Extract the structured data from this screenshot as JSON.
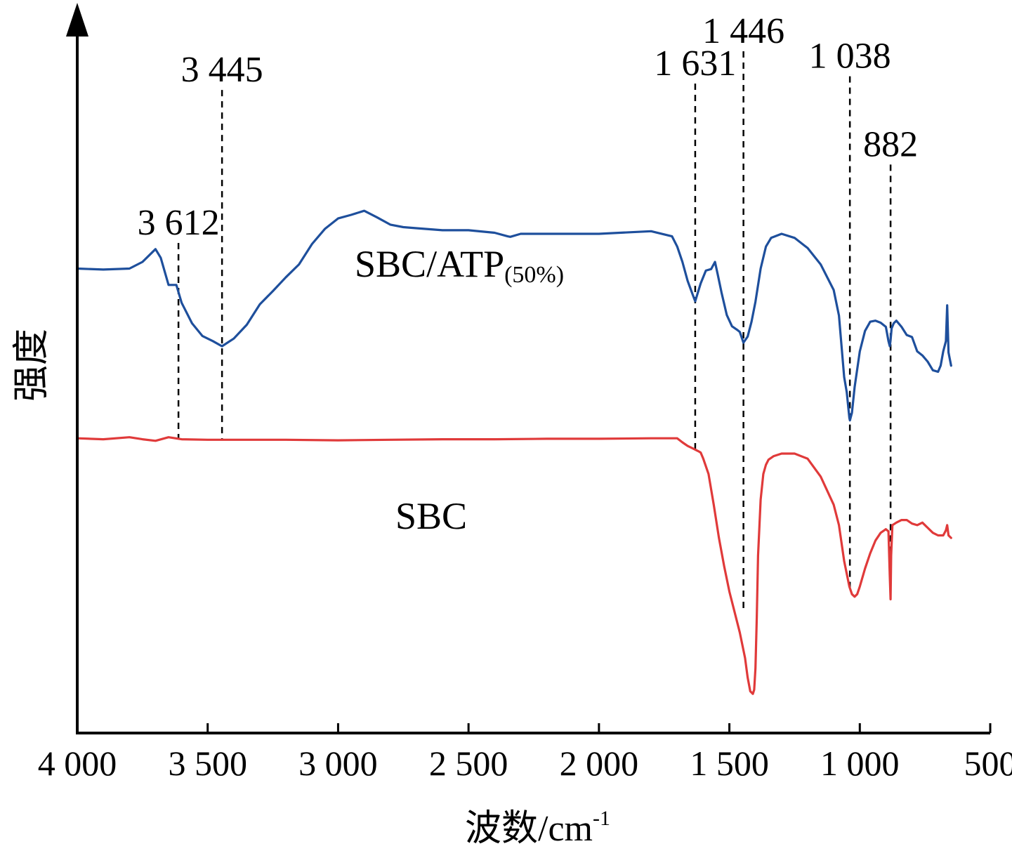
{
  "chart_data": {
    "type": "line",
    "title": "",
    "xlabel": "波数/cm",
    "xlabel_sup": "-1",
    "ylabel": "强度",
    "xlim": [
      4000,
      500
    ],
    "x_reversed": true,
    "ylim": [
      0,
      1
    ],
    "y_ticks_shown": false,
    "grid": false,
    "legend": "none",
    "x_ticks": [
      4000,
      3500,
      3000,
      2500,
      2000,
      1500,
      1000,
      500
    ],
    "x_tick_labels": [
      "4 000",
      "3 500",
      "3 000",
      "2 500",
      "2 000",
      "1 500",
      "1 000",
      "500"
    ],
    "series": [
      {
        "name": "SBC/ATP",
        "name_sub": "(50%)",
        "color": "#1e4f9c",
        "x": [
          4000,
          3900,
          3800,
          3750,
          3700,
          3680,
          3650,
          3620,
          3600,
          3560,
          3520,
          3480,
          3445,
          3400,
          3350,
          3300,
          3250,
          3200,
          3150,
          3100,
          3050,
          3000,
          2950,
          2900,
          2850,
          2800,
          2750,
          2700,
          2600,
          2500,
          2400,
          2350,
          2340,
          2300,
          2200,
          2000,
          1800,
          1720,
          1700,
          1680,
          1660,
          1640,
          1631,
          1610,
          1590,
          1570,
          1555,
          1545,
          1530,
          1510,
          1490,
          1470,
          1460,
          1446,
          1430,
          1415,
          1400,
          1380,
          1360,
          1340,
          1300,
          1250,
          1200,
          1150,
          1100,
          1080,
          1070,
          1060,
          1050,
          1040,
          1038,
          1030,
          1020,
          1000,
          980,
          960,
          940,
          920,
          900,
          890,
          885,
          882,
          878,
          870,
          860,
          840,
          820,
          800,
          780,
          760,
          740,
          720,
          700,
          690,
          680,
          670,
          665,
          660,
          650
        ],
        "y": [
          0.862,
          0.86,
          0.862,
          0.875,
          0.9,
          0.883,
          0.83,
          0.83,
          0.795,
          0.755,
          0.73,
          0.72,
          0.71,
          0.725,
          0.752,
          0.792,
          0.818,
          0.845,
          0.87,
          0.91,
          0.94,
          0.96,
          0.967,
          0.975,
          0.962,
          0.948,
          0.943,
          0.941,
          0.937,
          0.937,
          0.932,
          0.925,
          0.924,
          0.93,
          0.93,
          0.93,
          0.935,
          0.925,
          0.905,
          0.875,
          0.838,
          0.81,
          0.798,
          0.833,
          0.858,
          0.861,
          0.875,
          0.851,
          0.815,
          0.771,
          0.749,
          0.742,
          0.738,
          0.717,
          0.729,
          0.758,
          0.797,
          0.862,
          0.905,
          0.922,
          0.93,
          0.922,
          0.902,
          0.87,
          0.82,
          0.77,
          0.71,
          0.65,
          0.62,
          0.57,
          0.565,
          0.58,
          0.63,
          0.7,
          0.74,
          0.758,
          0.76,
          0.756,
          0.748,
          0.72,
          0.71,
          0.722,
          0.745,
          0.755,
          0.76,
          0.748,
          0.732,
          0.728,
          0.7,
          0.692,
          0.68,
          0.663,
          0.66,
          0.672,
          0.7,
          0.72,
          0.79,
          0.698,
          0.672
        ]
      },
      {
        "name": "SBC",
        "color": "#e03a3a",
        "x": [
          4000,
          3900,
          3800,
          3750,
          3700,
          3650,
          3600,
          3500,
          3400,
          3200,
          3000,
          2800,
          2600,
          2400,
          2200,
          2000,
          1800,
          1700,
          1680,
          1660,
          1640,
          1620,
          1610,
          1600,
          1580,
          1560,
          1540,
          1520,
          1500,
          1480,
          1460,
          1440,
          1430,
          1420,
          1410,
          1405,
          1400,
          1395,
          1390,
          1380,
          1370,
          1360,
          1350,
          1330,
          1300,
          1250,
          1200,
          1150,
          1100,
          1080,
          1060,
          1040,
          1030,
          1020,
          1010,
          1000,
          980,
          960,
          940,
          920,
          900,
          890,
          885,
          882,
          880,
          875,
          860,
          840,
          820,
          800,
          780,
          760,
          740,
          720,
          700,
          680,
          670,
          665,
          660,
          650
        ],
        "y": [
          0.53,
          0.528,
          0.532,
          0.528,
          0.525,
          0.532,
          0.528,
          0.527,
          0.527,
          0.527,
          0.526,
          0.527,
          0.528,
          0.528,
          0.529,
          0.529,
          0.53,
          0.53,
          0.522,
          0.515,
          0.51,
          0.505,
          0.502,
          0.49,
          0.46,
          0.4,
          0.335,
          0.28,
          0.23,
          0.19,
          0.15,
          0.1,
          0.062,
          0.035,
          0.03,
          0.038,
          0.08,
          0.18,
          0.3,
          0.41,
          0.46,
          0.478,
          0.488,
          0.495,
          0.5,
          0.5,
          0.49,
          0.455,
          0.4,
          0.36,
          0.29,
          0.24,
          0.225,
          0.22,
          0.225,
          0.24,
          0.275,
          0.305,
          0.33,
          0.345,
          0.352,
          0.348,
          0.26,
          0.215,
          0.3,
          0.36,
          0.365,
          0.37,
          0.37,
          0.363,
          0.36,
          0.365,
          0.355,
          0.345,
          0.34,
          0.34,
          0.35,
          0.36,
          0.34,
          0.335
        ]
      }
    ],
    "annotations": [
      {
        "label": "3 612",
        "x": 3612
      },
      {
        "label": "3 445",
        "x": 3445
      },
      {
        "label": "1 631",
        "x": 1631
      },
      {
        "label": "1 446",
        "x": 1446
      },
      {
        "label": "1 038",
        "x": 1038
      },
      {
        "label": "882",
        "x": 882
      }
    ]
  }
}
